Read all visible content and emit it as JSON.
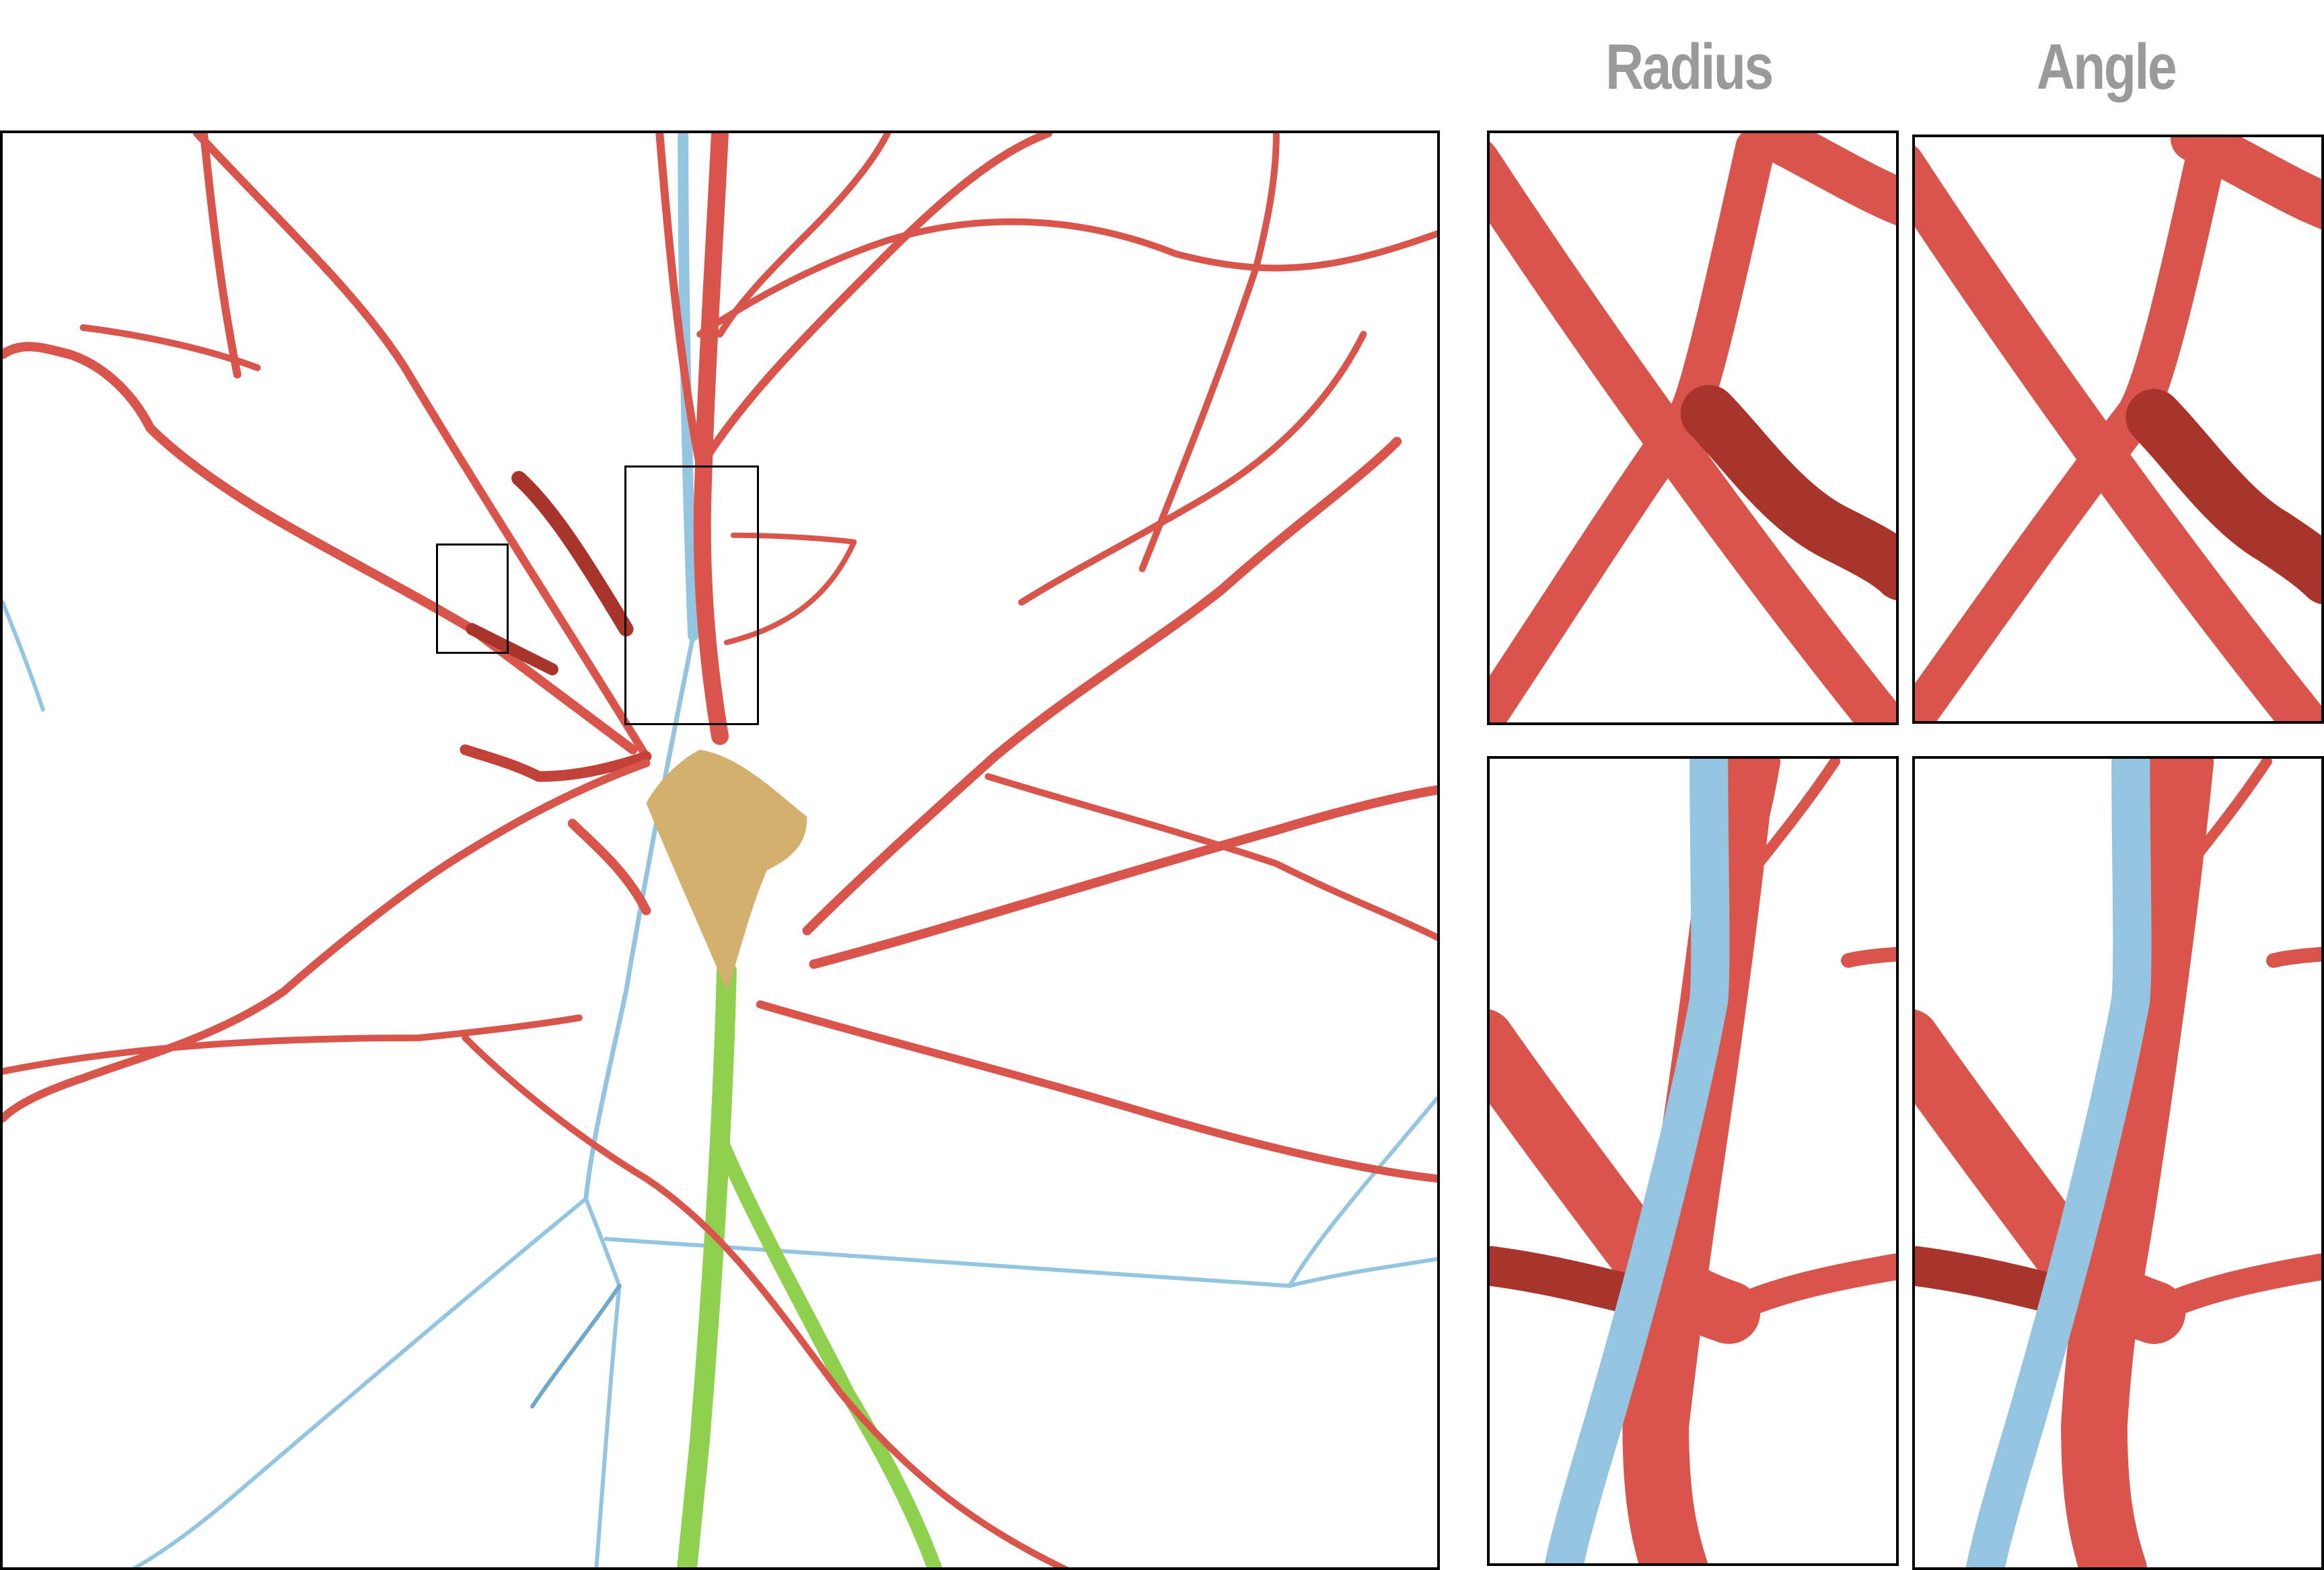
{
  "headers": {
    "radius": "Radius",
    "angle": "Angle"
  },
  "colors": {
    "dendrite": "#d9544a",
    "dendrite_dark": "#a8342c",
    "axon": "#93c4e0",
    "apical": "#8fd14f",
    "soma": "#d4b06e"
  }
}
